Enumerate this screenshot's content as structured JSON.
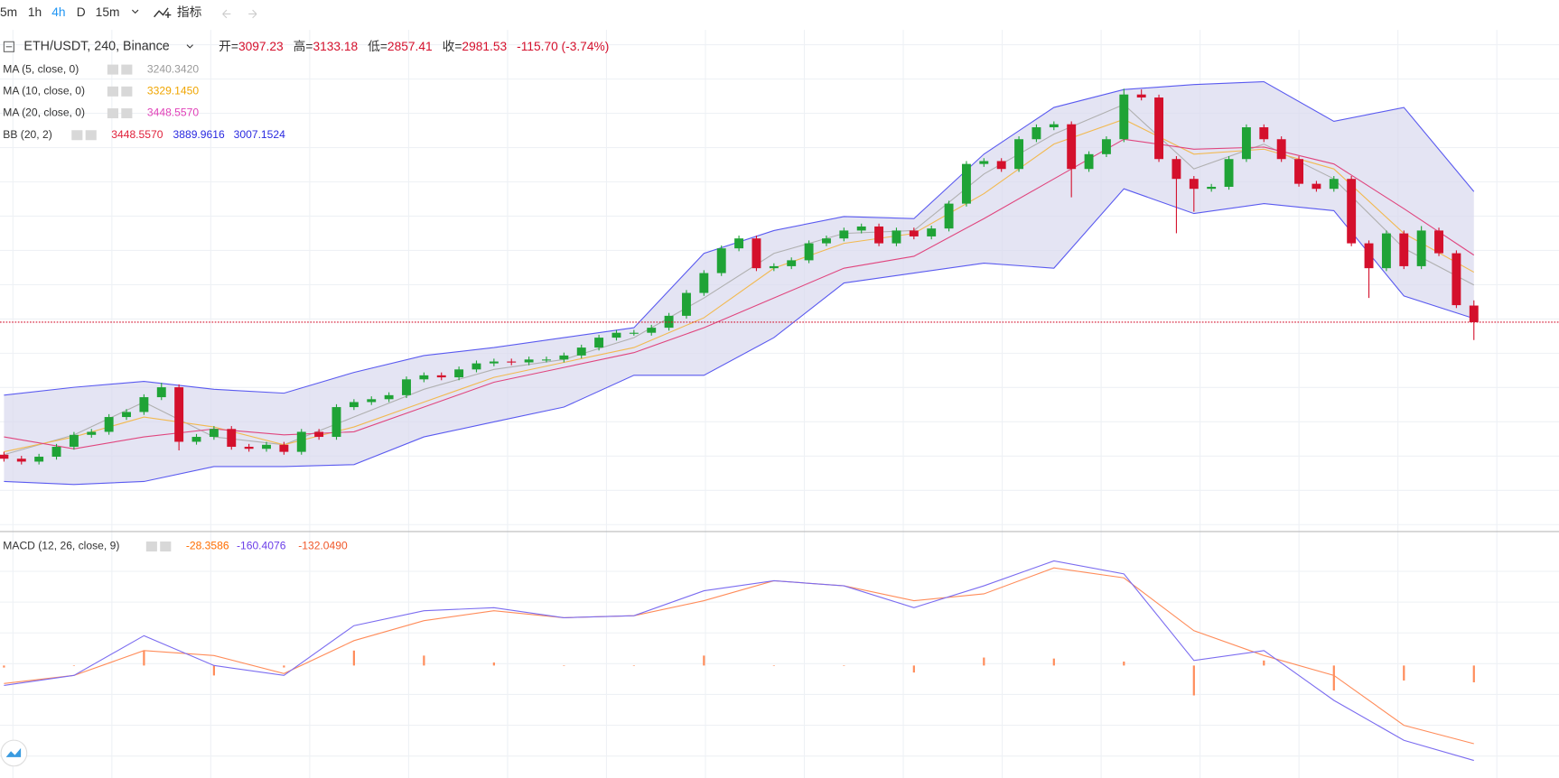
{
  "toolbar": {
    "intervals": [
      "5m",
      "1h",
      "4h",
      "D",
      "15m"
    ],
    "active": 2,
    "indicators": "指标"
  },
  "chart_data": {
    "type": "candlestick",
    "title": "ETH/USDT, 240, Binance",
    "ohlc_labels": [
      "开=",
      "高=",
      "低=",
      "收="
    ],
    "change_label": "-115.70 (-3.74%)",
    "up_color": "#1fa336",
    "down_color": "#d4102c",
    "ylim": [
      1560,
      4980
    ],
    "open": [
      2060,
      2032,
      2012,
      2046,
      2115,
      2198,
      2219,
      2322,
      2357,
      2460,
      2529,
      2150,
      2184,
      2239,
      2115,
      2101,
      2129,
      2080,
      2219,
      2184,
      2391,
      2426,
      2446,
      2474,
      2584,
      2612,
      2598,
      2653,
      2695,
      2708,
      2702,
      2722,
      2722,
      2750,
      2805,
      2874,
      2908,
      2908,
      2943,
      3026,
      3185,
      3323,
      3495,
      3564,
      3357,
      3371,
      3412,
      3530,
      3564,
      3619,
      3647,
      3530,
      3619,
      3578,
      3633,
      3806,
      4082,
      4102,
      4047,
      4254,
      4337,
      4358,
      4047,
      4150,
      4254,
      4565,
      4544,
      4116,
      3978,
      3909,
      3923,
      4116,
      4337,
      4254,
      4116,
      3944,
      3909,
      3978,
      3530,
      3357,
      3599,
      3371,
      3619,
      3461,
      3097.23
    ],
    "high": [
      2080,
      2052,
      2066,
      2135,
      2218,
      2239,
      2342,
      2377,
      2480,
      2560,
      2549,
      2204,
      2259,
      2259,
      2135,
      2149,
      2149,
      2239,
      2239,
      2411,
      2446,
      2466,
      2494,
      2604,
      2632,
      2632,
      2673,
      2715,
      2728,
      2728,
      2742,
      2742,
      2770,
      2825,
      2894,
      2928,
      2928,
      2963,
      3046,
      3205,
      3343,
      3515,
      3584,
      3584,
      3391,
      3432,
      3550,
      3584,
      3639,
      3667,
      3667,
      3639,
      3639,
      3653,
      3826,
      4102,
      4122,
      4122,
      4274,
      4357,
      4378,
      4378,
      4170,
      4274,
      4605,
      4600,
      4564,
      4136,
      3998,
      3943,
      4136,
      4357,
      4357,
      4274,
      4136,
      3964,
      3998,
      3998,
      3550,
      3619,
      3619,
      3650,
      3639,
      3481,
      3133.18
    ],
    "low": [
      2012,
      1992,
      1992,
      2026,
      2095,
      2178,
      2199,
      2302,
      2337,
      2440,
      2090,
      2130,
      2164,
      2095,
      2081,
      2081,
      2060,
      2060,
      2164,
      2164,
      2371,
      2406,
      2426,
      2454,
      2564,
      2578,
      2578,
      2633,
      2675,
      2682,
      2682,
      2702,
      2702,
      2730,
      2785,
      2854,
      2888,
      2888,
      2923,
      3006,
      3165,
      3303,
      3475,
      3337,
      3337,
      3351,
      3392,
      3510,
      3544,
      3599,
      3510,
      3510,
      3558,
      3558,
      3613,
      3786,
      4062,
      4027,
      4027,
      4234,
      4317,
      3850,
      4027,
      4130,
      4234,
      4524,
      4096,
      3600,
      3750,
      3889,
      3903,
      4096,
      4234,
      4096,
      3924,
      3889,
      3889,
      3510,
      3150,
      3337,
      3351,
      3351,
      3441,
      3080,
      2857.41
    ],
    "close": [
      2032,
      2012,
      2046,
      2115,
      2198,
      2219,
      2322,
      2357,
      2460,
      2529,
      2150,
      2184,
      2239,
      2115,
      2101,
      2129,
      2080,
      2219,
      2184,
      2391,
      2426,
      2446,
      2474,
      2584,
      2612,
      2598,
      2653,
      2695,
      2708,
      2702,
      2722,
      2722,
      2750,
      2805,
      2874,
      2908,
      2908,
      2943,
      3026,
      3185,
      3323,
      3495,
      3564,
      3357,
      3371,
      3412,
      3530,
      3564,
      3619,
      3647,
      3530,
      3619,
      3578,
      3633,
      3806,
      4082,
      4102,
      4047,
      4254,
      4337,
      4358,
      4047,
      4150,
      4254,
      4565,
      4544,
      4116,
      3978,
      3909,
      3923,
      4116,
      4337,
      4254,
      4116,
      3944,
      3909,
      3978,
      3530,
      3357,
      3599,
      3371,
      3619,
      3461,
      3100,
      2981.53
    ],
    "overlay_x": [
      0,
      4,
      8,
      12,
      16,
      20,
      24,
      28,
      32,
      36,
      40,
      44,
      48,
      52,
      56,
      60,
      64,
      68,
      72,
      76,
      80,
      84
    ],
    "overlays": [
      {
        "name": "MA (5, close, 0)",
        "color": "#b0b0b0",
        "values": [
          2060,
          2198,
          2426,
          2184,
          2129,
          2322,
          2515,
          2653,
          2722,
          2874,
          3150,
          3460,
          3599,
          3619,
          4012,
          4289,
          4496,
          4047,
          4220,
          3978,
          3495,
          3240.342
        ],
        "legend_values": [
          {
            "value": 3240.342,
            "label": "3240.3420"
          }
        ],
        "legend_colors": [
          "#999999"
        ]
      },
      {
        "name": "MA (10, close, 0)",
        "color": "#f2b950",
        "values": [
          2080,
          2184,
          2322,
          2253,
          2129,
          2253,
          2426,
          2598,
          2702,
          2805,
          3012,
          3357,
          3530,
          3599,
          3875,
          4220,
          4392,
          4150,
          4185,
          4047,
          3599,
          3329.145
        ],
        "legend_values": [
          {
            "value": 3329.145,
            "label": "3329.1450"
          }
        ],
        "legend_colors": [
          "#f0a500"
        ]
      },
      {
        "name": "MA (20, close, 0)",
        "color": "#e0457e",
        "values": [
          2184,
          2101,
          2184,
          2239,
          2198,
          2219,
          2391,
          2564,
          2667,
          2770,
          2943,
          3150,
          3357,
          3440,
          3702,
          3978,
          4254,
          4185,
          4199,
          4082,
          3771,
          3448.557
        ],
        "legend_values": [
          {
            "value": 3448.557,
            "label": "3448.5570"
          }
        ],
        "legend_colors": [
          "#e040b8"
        ]
      },
      {
        "name": "BB (20, 2)",
        "color": "#5a5af0",
        "fill": "#d9d9ee",
        "upper": [
          2474,
          2529,
          2570,
          2515,
          2488,
          2632,
          2750,
          2805,
          2874,
          2943,
          3460,
          3619,
          3716,
          3702,
          4150,
          4475,
          4599,
          4634,
          4654,
          4378,
          4475,
          3889.9616
        ],
        "lower": [
          1874,
          1853,
          1874,
          1977,
          1977,
          1991,
          2184,
          2288,
          2391,
          2612,
          2612,
          2874,
          3254,
          3323,
          3392,
          3357,
          3909,
          3737,
          3806,
          3757,
          3164,
          3007.1524
        ],
        "legend_values": [
          {
            "value": 3448.557,
            "label": "3448.5570"
          },
          3889.9616,
          3007.1524
        ],
        "legend_colors": [
          "#e0203a",
          "#2a2ae0",
          "#2a2ae0"
        ]
      }
    ],
    "macd": {
      "name": "MACD (12, 26, close, 9)",
      "ylim": [
        -190,
        218
      ],
      "macd_color": "#7b6cf0",
      "signal_color": "#ff8c5a",
      "histogram_color": "#ff8c5a",
      "histogram": [
        -3.4,
        0,
        25.2,
        -16.8,
        -3.3,
        25.3,
        16.8,
        5.1,
        0,
        0,
        16.8,
        0,
        0,
        -11.8,
        13.5,
        11.8,
        6.7,
        -50.5,
        8.5,
        -42.1,
        -25.3,
        -28.3586
      ],
      "macd": [
        -33.7,
        -16.8,
        50.5,
        0,
        -16.8,
        67.4,
        92.6,
        97.7,
        80.8,
        84.2,
        126.3,
        143.2,
        134.7,
        97.7,
        134.7,
        176.8,
        154.9,
        8.4,
        25.3,
        -58.9,
        -126.3,
        -160.4076
      ],
      "signal": [
        -30.3,
        -16.8,
        25.3,
        16.8,
        -13.5,
        42.1,
        75.8,
        92.6,
        80.8,
        84.2,
        109.5,
        143.2,
        134.7,
        109.5,
        121.2,
        165,
        148.2,
        58.9,
        16.8,
        -16.8,
        -101,
        -132.049
      ],
      "legend_values": [
        -28.3586,
        -160.4076,
        {
          "value": -132.049,
          "label": "-132.0490"
        }
      ],
      "legend_colors": [
        "#ff6d00",
        "#6a3de8",
        "#f0582a"
      ]
    }
  }
}
